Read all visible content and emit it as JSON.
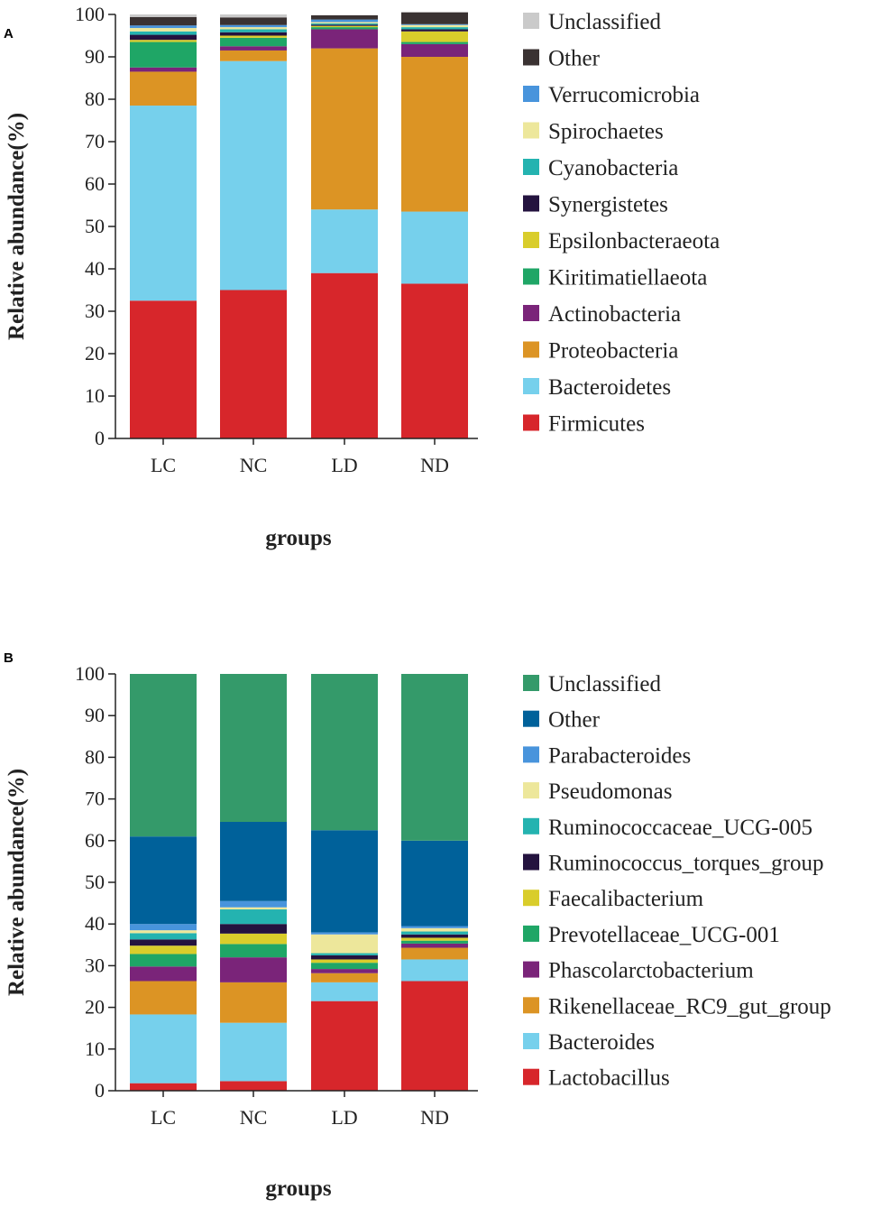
{
  "chart_data": [
    {
      "panel_label": "A",
      "type": "stacked-bar",
      "xlabel": "groups",
      "ylabel": "Relative abundance(%)",
      "ylim": [
        0,
        100
      ],
      "yticks": [
        "0",
        "10",
        "20",
        "30",
        "40",
        "50",
        "60",
        "70",
        "80",
        "90",
        "100"
      ],
      "categories": [
        "LC",
        "NC",
        "LD",
        "ND"
      ],
      "series": [
        {
          "name": "Firmicutes",
          "color": "#d7262b",
          "values": [
            32.5,
            35.0,
            39.0,
            36.5
          ]
        },
        {
          "name": "Bacteroidetes",
          "color": "#76d0ec",
          "values": [
            46.0,
            54.0,
            15.0,
            17.0
          ]
        },
        {
          "name": "Proteobacteria",
          "color": "#dc9424",
          "values": [
            8.0,
            2.5,
            38.0,
            36.5
          ]
        },
        {
          "name": "Actinobacteria",
          "color": "#7a2479",
          "values": [
            1.0,
            1.0,
            4.5,
            3.0
          ]
        },
        {
          "name": "Kiritimatiellaeota",
          "color": "#1fa666",
          "values": [
            6.0,
            2.0,
            0.5,
            0.5
          ]
        },
        {
          "name": "Epsilonbacteraeota",
          "color": "#d9cd2b",
          "values": [
            0.5,
            0.5,
            0.3,
            2.5
          ]
        },
        {
          "name": "Synergistetes",
          "color": "#24133f",
          "values": [
            1.2,
            0.8,
            0.3,
            0.5
          ]
        },
        {
          "name": "Cyanobacteria",
          "color": "#24b3b0",
          "values": [
            0.8,
            0.7,
            0.3,
            0.5
          ]
        },
        {
          "name": "Spirochaetes",
          "color": "#ede79b",
          "values": [
            0.8,
            0.5,
            0.3,
            0.5
          ]
        },
        {
          "name": "Verrucomicrobia",
          "color": "#4894dc",
          "values": [
            0.6,
            0.5,
            0.6,
            0.2
          ]
        },
        {
          "name": "Other",
          "color": "#3a3232",
          "values": [
            2.0,
            1.8,
            1.0,
            2.8
          ]
        },
        {
          "name": "Unclassified",
          "color": "#cacaca",
          "values": [
            0.6,
            0.7,
            0.0,
            0.0
          ]
        }
      ]
    },
    {
      "panel_label": "B",
      "type": "stacked-bar",
      "xlabel": "groups",
      "ylabel": "Relative abundance(%)",
      "ylim": [
        0,
        100
      ],
      "yticks": [
        "0",
        "10",
        "20",
        "30",
        "40",
        "50",
        "60",
        "70",
        "80",
        "90",
        "100"
      ],
      "categories": [
        "LC",
        "NC",
        "LD",
        "ND"
      ],
      "series": [
        {
          "name": "Lactobacillus",
          "color": "#d7262b",
          "values": [
            1.8,
            2.3,
            21.5,
            26.3
          ]
        },
        {
          "name": "Bacteroides",
          "color": "#76d0ec",
          "values": [
            16.5,
            14.0,
            4.5,
            5.2
          ]
        },
        {
          "name": "Rikenellaceae_RC9_gut_group",
          "color": "#dc9424",
          "values": [
            8.0,
            9.7,
            2.2,
            2.8
          ]
        },
        {
          "name": "Phascolarctobacterium",
          "color": "#7a2479",
          "values": [
            3.5,
            6.0,
            1.0,
            1.0
          ]
        },
        {
          "name": "Prevotellaceae_UCG-001",
          "color": "#1fa666",
          "values": [
            3.0,
            3.2,
            1.5,
            0.7
          ]
        },
        {
          "name": "Faecalibacterium",
          "color": "#d9cd2b",
          "values": [
            2.0,
            2.5,
            0.8,
            0.7
          ]
        },
        {
          "name": "Ruminococcus_torques_group",
          "color": "#24133f",
          "values": [
            1.5,
            2.3,
            1.0,
            0.8
          ]
        },
        {
          "name": "Ruminococcaceae_UCG-005",
          "color": "#24b3b0",
          "values": [
            1.5,
            3.5,
            0.5,
            0.7
          ]
        },
        {
          "name": "Pseudomonas",
          "color": "#ede79b",
          "values": [
            0.7,
            0.5,
            4.5,
            0.8
          ]
        },
        {
          "name": "Parabacteroides",
          "color": "#4894dc",
          "values": [
            1.5,
            1.5,
            0.5,
            0.5
          ]
        },
        {
          "name": "Other",
          "color": "#00619a",
          "values": [
            21.0,
            19.0,
            24.5,
            20.5
          ]
        },
        {
          "name": "Unclassified",
          "color": "#349a6a",
          "values": [
            39.0,
            35.5,
            37.5,
            40.0
          ]
        }
      ]
    }
  ]
}
